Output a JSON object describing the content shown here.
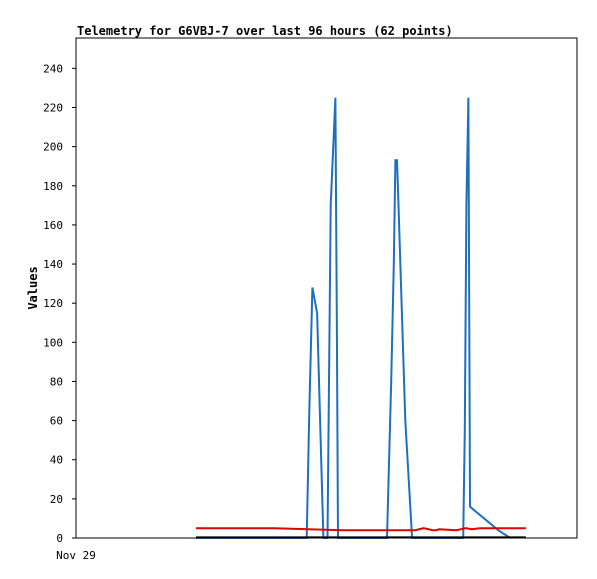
{
  "chart_data": {
    "type": "line",
    "title": "Telemetry for G6VBJ-7 over last 96 hours (62 points)",
    "xlabel": "",
    "ylabel": "Values",
    "x_ticks": [
      "Nov 29"
    ],
    "y_ticks": [
      0,
      20,
      40,
      60,
      80,
      100,
      120,
      140,
      160,
      180,
      200,
      220,
      240
    ],
    "ylim": [
      0,
      255
    ],
    "xlim": [
      0,
      96
    ],
    "grid": false,
    "legend": "none",
    "series": [
      {
        "color": "#1f6fbf",
        "x": [
          23,
          43,
          44.2,
          44.7,
          45.3,
          46.2,
          47.4,
          47.8,
          48.2,
          48.8,
          49.7,
          50,
          50.2,
          50.6,
          51,
          51.6,
          59.6,
          60.4,
          60.9,
          61.2,
          61.5,
          61.8,
          63.1,
          64.4,
          74.2,
          74.5,
          74.8,
          75.2,
          75.5,
          80.9,
          83.2
        ],
        "values": [
          0,
          0,
          0,
          65,
          128,
          115,
          0,
          0,
          0,
          170,
          225,
          105,
          0,
          0,
          0,
          0,
          0,
          80,
          140,
          193,
          193,
          170,
          60,
          0,
          0,
          55,
          170,
          225,
          16,
          4,
          0
        ]
      },
      {
        "color": "#e00000",
        "x": [
          23,
          38,
          51,
          65,
          66.6,
          68.4,
          69,
          69.6,
          72.9,
          74.7,
          75.8,
          77.4,
          86.2
        ],
        "values": [
          5,
          5,
          4,
          4,
          5,
          4,
          4,
          4.5,
          4,
          5,
          4.5,
          5,
          5
        ]
      },
      {
        "color": "#000000",
        "x": [
          23,
          86.2
        ],
        "values": [
          0.3,
          0.3
        ]
      }
    ]
  }
}
